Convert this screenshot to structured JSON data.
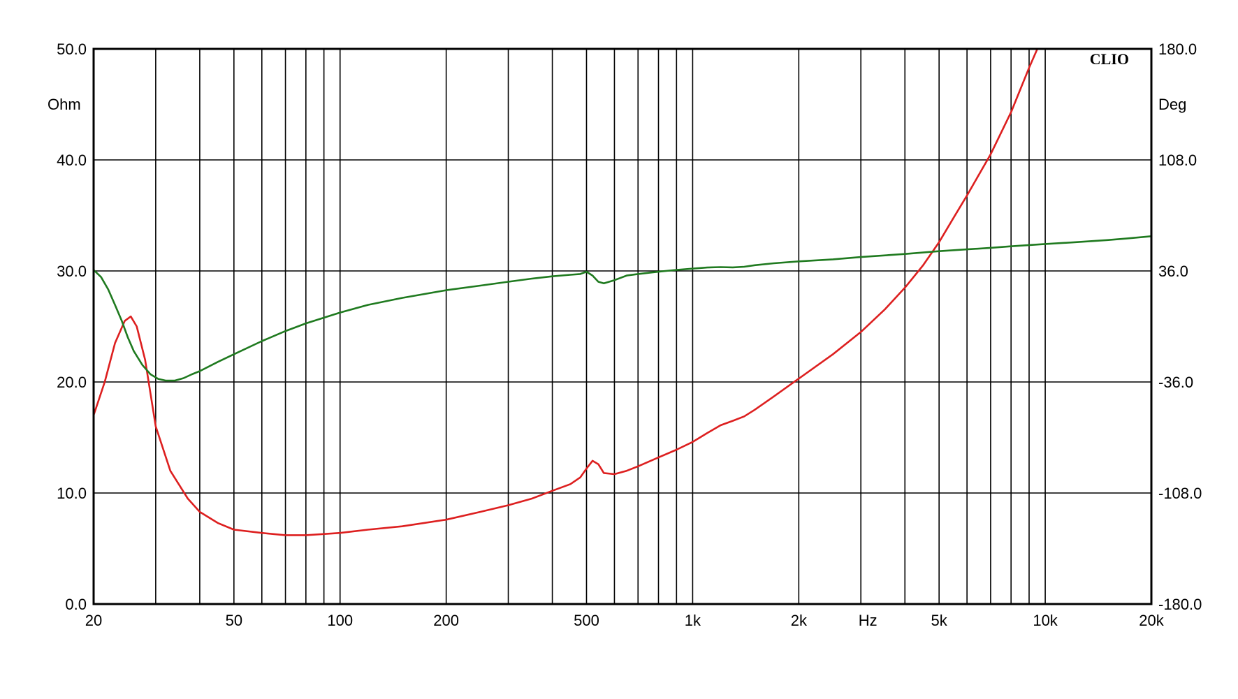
{
  "chart_data": {
    "type": "line",
    "brand": "CLIO",
    "x_scale": "log",
    "xlim": [
      20,
      20000
    ],
    "x_ticks": [
      {
        "value": 20,
        "label": "20"
      },
      {
        "value": 50,
        "label": "50"
      },
      {
        "value": 100,
        "label": "100"
      },
      {
        "value": 200,
        "label": "200"
      },
      {
        "value": 500,
        "label": "500"
      },
      {
        "value": 1000,
        "label": "1k"
      },
      {
        "value": 2000,
        "label": "2k"
      },
      {
        "value": 3000,
        "label": "Hz"
      },
      {
        "value": 5000,
        "label": "5k"
      },
      {
        "value": 10000,
        "label": "10k"
      },
      {
        "value": 20000,
        "label": "20k"
      }
    ],
    "x_gridlines": [
      20,
      30,
      40,
      50,
      60,
      70,
      80,
      90,
      100,
      200,
      300,
      400,
      500,
      600,
      700,
      800,
      900,
      1000,
      2000,
      3000,
      4000,
      5000,
      6000,
      7000,
      8000,
      9000,
      10000,
      20000
    ],
    "y_left": {
      "unit": "Ohm",
      "range": [
        0,
        50
      ],
      "ticks": [
        {
          "value": 0,
          "label": "0.0"
        },
        {
          "value": 10,
          "label": "10.0"
        },
        {
          "value": 20,
          "label": "20.0"
        },
        {
          "value": 30,
          "label": "30.0"
        },
        {
          "value": 40,
          "label": "40.0"
        },
        {
          "value": 50,
          "label": "50.0"
        }
      ]
    },
    "y_right": {
      "unit": "Deg",
      "range": [
        -180,
        180
      ],
      "ticks": [
        {
          "value": -180,
          "label": "-180.0"
        },
        {
          "value": -108,
          "label": "-108.0"
        },
        {
          "value": -36,
          "label": "-36.0"
        },
        {
          "value": 36,
          "label": "36.0"
        },
        {
          "value": 108,
          "label": "108.0"
        },
        {
          "value": 180,
          "label": "180.0"
        }
      ]
    },
    "grid": true,
    "series": [
      {
        "axis": "left",
        "color": "#dd1f1f",
        "points": [
          [
            20,
            17
          ],
          [
            21.5,
            20
          ],
          [
            23,
            23.5
          ],
          [
            24.5,
            25.5
          ],
          [
            25.5,
            25.9
          ],
          [
            26.5,
            25
          ],
          [
            28,
            22
          ],
          [
            30,
            16
          ],
          [
            33,
            12
          ],
          [
            37,
            9.5
          ],
          [
            40,
            8.3
          ],
          [
            45,
            7.3
          ],
          [
            50,
            6.7
          ],
          [
            60,
            6.4
          ],
          [
            70,
            6.2
          ],
          [
            80,
            6.2
          ],
          [
            100,
            6.4
          ],
          [
            120,
            6.7
          ],
          [
            150,
            7.0
          ],
          [
            200,
            7.6
          ],
          [
            250,
            8.3
          ],
          [
            300,
            8.9
          ],
          [
            350,
            9.5
          ],
          [
            400,
            10.2
          ],
          [
            450,
            10.8
          ],
          [
            480,
            11.4
          ],
          [
            500,
            12.2
          ],
          [
            520,
            12.9
          ],
          [
            540,
            12.6
          ],
          [
            560,
            11.8
          ],
          [
            600,
            11.7
          ],
          [
            650,
            12.0
          ],
          [
            700,
            12.4
          ],
          [
            800,
            13.2
          ],
          [
            900,
            13.9
          ],
          [
            1000,
            14.6
          ],
          [
            1100,
            15.4
          ],
          [
            1200,
            16.1
          ],
          [
            1300,
            16.5
          ],
          [
            1400,
            16.9
          ],
          [
            1500,
            17.5
          ],
          [
            1700,
            18.7
          ],
          [
            2000,
            20.3
          ],
          [
            2500,
            22.5
          ],
          [
            3000,
            24.5
          ],
          [
            3500,
            26.5
          ],
          [
            4000,
            28.5
          ],
          [
            4500,
            30.5
          ],
          [
            5000,
            32.6
          ],
          [
            5500,
            34.8
          ],
          [
            6000,
            36.8
          ],
          [
            7000,
            40.5
          ],
          [
            8000,
            44.3
          ],
          [
            9000,
            48.3
          ],
          [
            9500,
            50
          ]
        ]
      },
      {
        "axis": "right",
        "color": "#1f7a1f",
        "points": [
          [
            20,
            36.7
          ],
          [
            21,
            32
          ],
          [
            22,
            24
          ],
          [
            23,
            14
          ],
          [
            24,
            4
          ],
          [
            25,
            -7
          ],
          [
            26,
            -16
          ],
          [
            27.5,
            -25
          ],
          [
            29,
            -31
          ],
          [
            30.5,
            -34
          ],
          [
            32,
            -35.1
          ],
          [
            34,
            -35.1
          ],
          [
            36,
            -33.5
          ],
          [
            38,
            -31
          ],
          [
            40,
            -29
          ],
          [
            45,
            -23
          ],
          [
            50,
            -18
          ],
          [
            60,
            -9.5
          ],
          [
            70,
            -3
          ],
          [
            80,
            2
          ],
          [
            100,
            9
          ],
          [
            120,
            14
          ],
          [
            150,
            18.5
          ],
          [
            200,
            23.5
          ],
          [
            250,
            26.5
          ],
          [
            300,
            29
          ],
          [
            350,
            31
          ],
          [
            400,
            32.5
          ],
          [
            450,
            33.5
          ],
          [
            480,
            34
          ],
          [
            500,
            35.5
          ],
          [
            520,
            33
          ],
          [
            540,
            29
          ],
          [
            560,
            28
          ],
          [
            600,
            30
          ],
          [
            650,
            33
          ],
          [
            700,
            34
          ],
          [
            800,
            35.5
          ],
          [
            900,
            36.7
          ],
          [
            1000,
            37.5
          ],
          [
            1100,
            38.2
          ],
          [
            1200,
            38.5
          ],
          [
            1300,
            38.3
          ],
          [
            1400,
            38.7
          ],
          [
            1500,
            39.7
          ],
          [
            1700,
            41
          ],
          [
            2000,
            42.2
          ],
          [
            2500,
            43.5
          ],
          [
            3000,
            45
          ],
          [
            4000,
            47
          ],
          [
            5000,
            48.8
          ],
          [
            6000,
            50
          ],
          [
            7000,
            51
          ],
          [
            8000,
            52
          ],
          [
            10000,
            53.5
          ],
          [
            12000,
            54.5
          ],
          [
            15000,
            56
          ],
          [
            17000,
            57
          ],
          [
            20000,
            58.5
          ]
        ]
      }
    ]
  }
}
